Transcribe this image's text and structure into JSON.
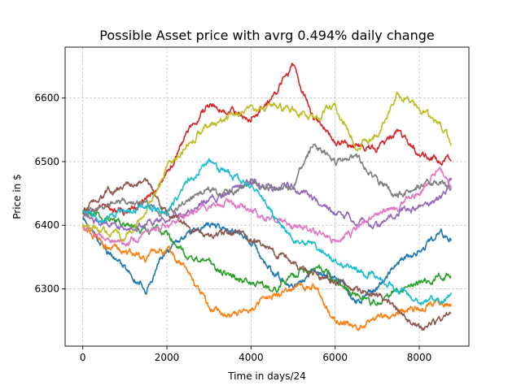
{
  "chart_data": {
    "type": "line",
    "title": "Possible Asset price with avrg 0.494% daily change",
    "xlabel": "Time in days/24",
    "ylabel": "Price in $",
    "xlim": [
      -420,
      9180
    ],
    "ylim": [
      6210,
      6680
    ],
    "xticks": [
      0,
      2000,
      4000,
      6000,
      8000
    ],
    "yticks": [
      6300,
      6400,
      6500,
      6600
    ],
    "grid": true,
    "colors": [
      "#1f77b4",
      "#ff7f0e",
      "#2ca02c",
      "#d62728",
      "#9467bd",
      "#8c564b",
      "#e377c2",
      "#7f7f7f",
      "#bcbd22",
      "#17becf"
    ],
    "x": [
      0,
      500,
      1000,
      1500,
      2000,
      2500,
      3000,
      3500,
      4000,
      4500,
      5000,
      5500,
      6000,
      6500,
      7000,
      7500,
      8000,
      8500,
      8760
    ],
    "series": [
      {
        "values": [
          6410,
          6365,
          6335,
          6300,
          6360,
          6390,
          6400,
          6395,
          6375,
          6325,
          6300,
          6330,
          6320,
          6280,
          6300,
          6345,
          6360,
          6390,
          6375
        ]
      },
      {
        "values": [
          6400,
          6370,
          6360,
          6350,
          6360,
          6330,
          6270,
          6260,
          6270,
          6290,
          6300,
          6305,
          6250,
          6240,
          6255,
          6265,
          6270,
          6280,
          6275
        ]
      },
      {
        "values": [
          6420,
          6410,
          6400,
          6395,
          6390,
          6350,
          6340,
          6320,
          6310,
          6300,
          6320,
          6340,
          6310,
          6290,
          6280,
          6300,
          6310,
          6320,
          6320
        ]
      },
      {
        "values": [
          6420,
          6430,
          6420,
          6440,
          6480,
          6550,
          6590,
          6580,
          6570,
          6600,
          6650,
          6570,
          6530,
          6525,
          6520,
          6550,
          6510,
          6500,
          6510
        ]
      },
      {
        "values": [
          6410,
          6405,
          6395,
          6400,
          6410,
          6420,
          6440,
          6450,
          6470,
          6460,
          6460,
          6440,
          6420,
          6410,
          6400,
          6420,
          6430,
          6440,
          6470
        ]
      },
      {
        "values": [
          6420,
          6450,
          6460,
          6470,
          6420,
          6400,
          6380,
          6390,
          6380,
          6360,
          6340,
          6320,
          6310,
          6300,
          6290,
          6270,
          6240,
          6250,
          6260
        ]
      },
      {
        "values": [
          6400,
          6380,
          6370,
          6390,
          6400,
          6420,
          6430,
          6440,
          6420,
          6410,
          6400,
          6390,
          6380,
          6390,
          6420,
          6430,
          6450,
          6490,
          6460
        ]
      },
      {
        "values": [
          6420,
          6430,
          6440,
          6430,
          6420,
          6440,
          6460,
          6450,
          6470,
          6460,
          6460,
          6530,
          6500,
          6510,
          6470,
          6450,
          6460,
          6470,
          6450
        ]
      },
      {
        "values": [
          6400,
          6390,
          6380,
          6420,
          6490,
          6530,
          6560,
          6570,
          6580,
          6590,
          6580,
          6570,
          6590,
          6520,
          6540,
          6610,
          6580,
          6560,
          6530
        ]
      },
      {
        "values": [
          6420,
          6410,
          6420,
          6430,
          6420,
          6470,
          6500,
          6480,
          6460,
          6420,
          6380,
          6370,
          6340,
          6330,
          6320,
          6300,
          6280,
          6280,
          6290
        ]
      }
    ]
  }
}
